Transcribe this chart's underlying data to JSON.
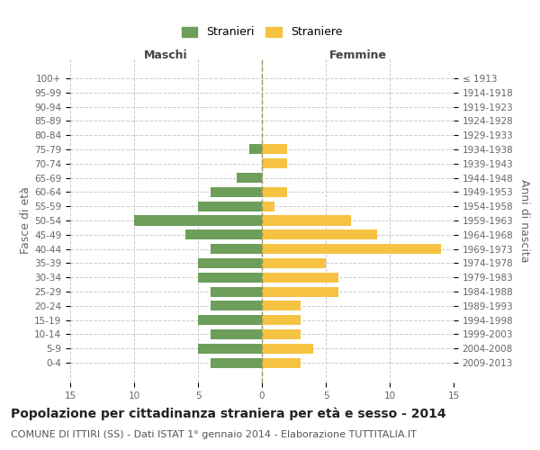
{
  "age_groups": [
    "100+",
    "95-99",
    "90-94",
    "85-89",
    "80-84",
    "75-79",
    "70-74",
    "65-69",
    "60-64",
    "55-59",
    "50-54",
    "45-49",
    "40-44",
    "35-39",
    "30-34",
    "25-29",
    "20-24",
    "15-19",
    "10-14",
    "5-9",
    "0-4"
  ],
  "birth_years": [
    "≤ 1913",
    "1914-1918",
    "1919-1923",
    "1924-1928",
    "1929-1933",
    "1934-1938",
    "1939-1943",
    "1944-1948",
    "1949-1953",
    "1954-1958",
    "1959-1963",
    "1964-1968",
    "1969-1973",
    "1974-1978",
    "1979-1983",
    "1984-1988",
    "1989-1993",
    "1994-1998",
    "1999-2003",
    "2004-2008",
    "2009-2013"
  ],
  "maschi": [
    0,
    0,
    0,
    0,
    0,
    1,
    0,
    2,
    4,
    5,
    10,
    6,
    4,
    5,
    5,
    4,
    4,
    5,
    4,
    5,
    4
  ],
  "femmine": [
    0,
    0,
    0,
    0,
    0,
    2,
    2,
    0,
    2,
    1,
    7,
    9,
    14,
    5,
    6,
    6,
    3,
    3,
    3,
    4,
    3
  ],
  "maschi_color": "#6d9e5a",
  "femmine_color": "#f5c242",
  "title": "Popolazione per cittadinanza straniera per età e sesso - 2014",
  "subtitle": "COMUNE DI ITTIRI (SS) - Dati ISTAT 1° gennaio 2014 - Elaborazione TUTTITALIA.IT",
  "xlabel_left": "Maschi",
  "xlabel_right": "Femmine",
  "ylabel_left": "Fasce di età",
  "ylabel_right": "Anni di nascita",
  "legend_stranieri": "Stranieri",
  "legend_straniere": "Straniere",
  "xlim": 15,
  "background_color": "#ffffff",
  "grid_color": "#cccccc",
  "title_fontsize": 10,
  "subtitle_fontsize": 8,
  "tick_fontsize": 7.5,
  "label_fontsize": 9
}
